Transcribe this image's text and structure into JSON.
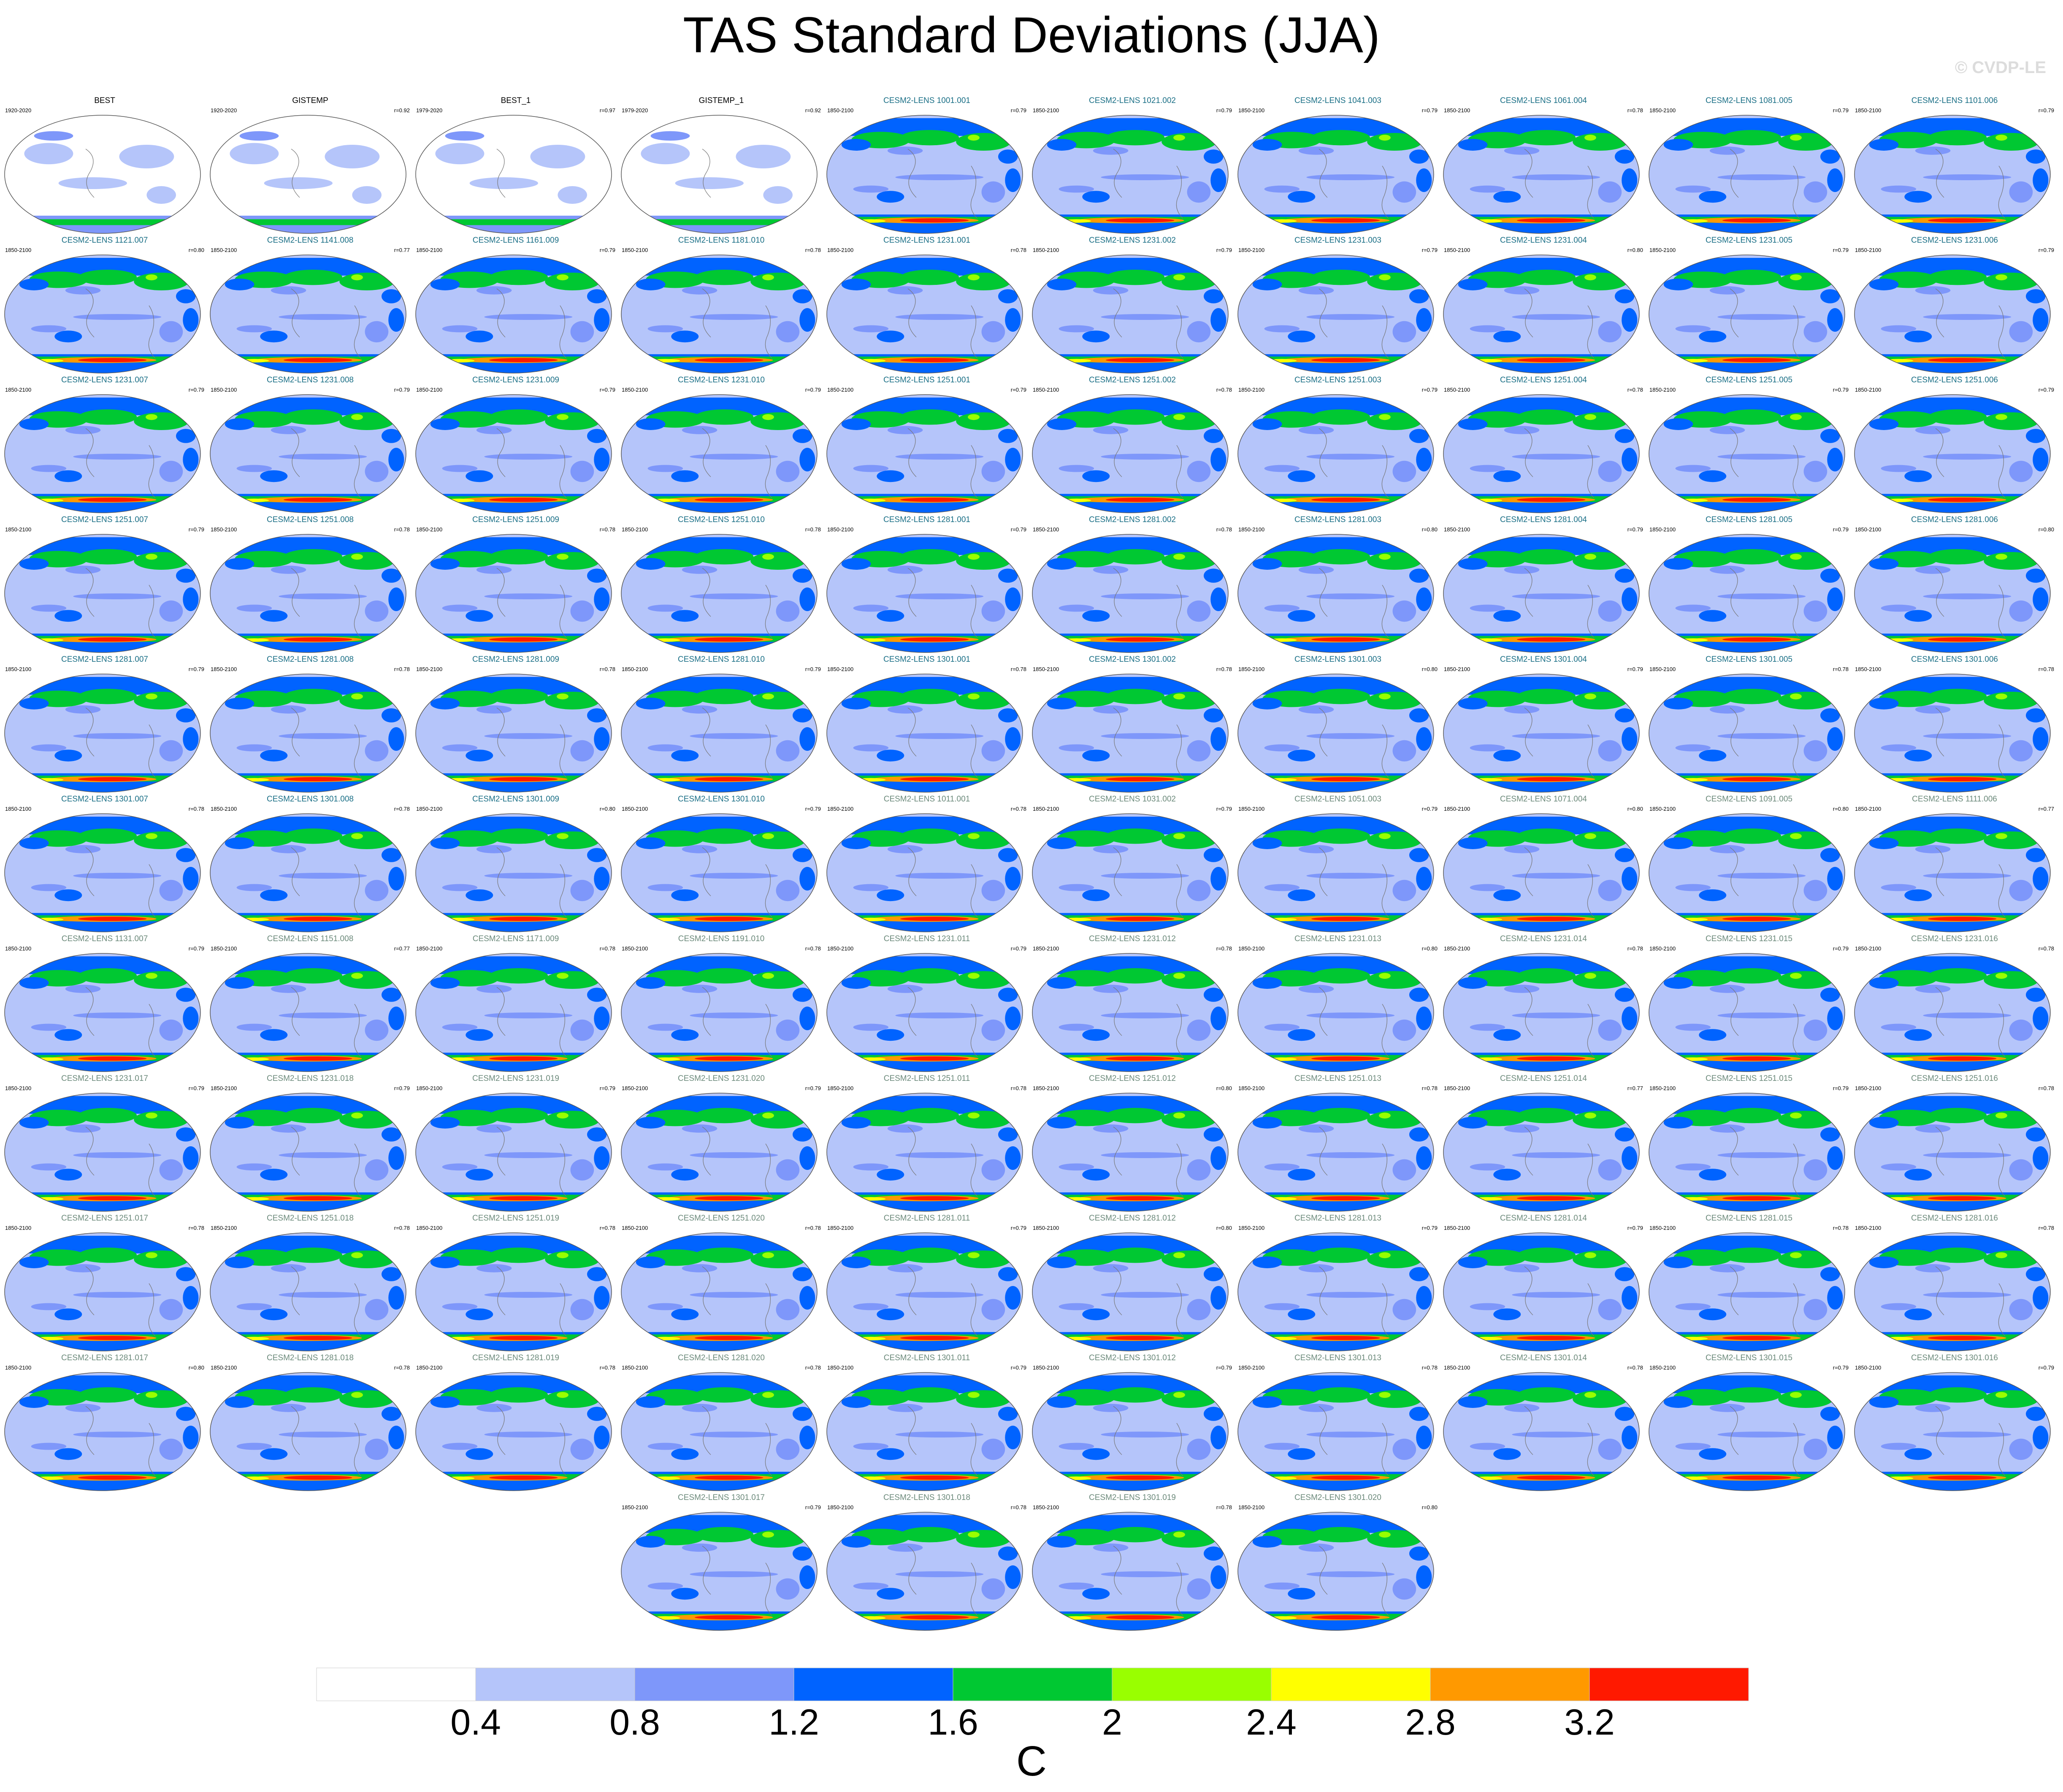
{
  "title": "TAS Standard Deviations (JJA)",
  "watermark": "© CVDP-LE",
  "colors": {
    "ref_title": "#000000",
    "member_title_dark": "#1a6f86",
    "member_title_light": "#6c8a7b",
    "ocean_base": "#b5c5fa"
  },
  "chart_data": {
    "type": "map-panel-grid",
    "variable": "TAS",
    "season": "JJA",
    "projection": "robinson",
    "colorbar": {
      "levels": [
        0.4,
        0.8,
        1.2,
        1.6,
        2,
        2.4,
        2.8,
        3.2
      ],
      "tick_labels": [
        "0.4",
        "0.8",
        "1.2",
        "1.6",
        "2",
        "2.4",
        "2.8",
        "3.2"
      ],
      "colors": [
        "#ffffff",
        "#b5c5fa",
        "#7e97fa",
        "#0063ff",
        "#00c832",
        "#99ff00",
        "#ffff00",
        "#ff9900",
        "#ff1900"
      ],
      "unit": "C"
    },
    "panels": [
      {
        "title": "BEST",
        "range": "1920-2020",
        "r": "",
        "type": "obs"
      },
      {
        "title": "GISTEMP",
        "range": "1920-2020",
        "r": "r=0.92",
        "type": "obs"
      },
      {
        "title": "BEST_1",
        "range": "1979-2020",
        "r": "r=0.97",
        "type": "obs"
      },
      {
        "title": "GISTEMP_1",
        "range": "1979-2020",
        "r": "r=0.92",
        "type": "obs"
      },
      {
        "title": "CESM2-LENS 1001.001",
        "range": "1850-2100",
        "r": "r=0.79",
        "type": "dark"
      },
      {
        "title": "CESM2-LENS 1021.002",
        "range": "1850-2100",
        "r": "r=0.79",
        "type": "dark"
      },
      {
        "title": "CESM2-LENS 1041.003",
        "range": "1850-2100",
        "r": "r=0.79",
        "type": "dark"
      },
      {
        "title": "CESM2-LENS 1061.004",
        "range": "1850-2100",
        "r": "r=0.78",
        "type": "dark"
      },
      {
        "title": "CESM2-LENS 1081.005",
        "range": "1850-2100",
        "r": "r=0.79",
        "type": "dark"
      },
      {
        "title": "CESM2-LENS 1101.006",
        "range": "1850-2100",
        "r": "r=0.79",
        "type": "dark"
      },
      {
        "title": "CESM2-LENS 1121.007",
        "range": "1850-2100",
        "r": "r=0.80",
        "type": "dark"
      },
      {
        "title": "CESM2-LENS 1141.008",
        "range": "1850-2100",
        "r": "r=0.77",
        "type": "dark"
      },
      {
        "title": "CESM2-LENS 1161.009",
        "range": "1850-2100",
        "r": "r=0.79",
        "type": "dark"
      },
      {
        "title": "CESM2-LENS 1181.010",
        "range": "1850-2100",
        "r": "r=0.78",
        "type": "dark"
      },
      {
        "title": "CESM2-LENS 1231.001",
        "range": "1850-2100",
        "r": "r=0.78",
        "type": "dark"
      },
      {
        "title": "CESM2-LENS 1231.002",
        "range": "1850-2100",
        "r": "r=0.79",
        "type": "dark"
      },
      {
        "title": "CESM2-LENS 1231.003",
        "range": "1850-2100",
        "r": "r=0.79",
        "type": "dark"
      },
      {
        "title": "CESM2-LENS 1231.004",
        "range": "1850-2100",
        "r": "r=0.80",
        "type": "dark"
      },
      {
        "title": "CESM2-LENS 1231.005",
        "range": "1850-2100",
        "r": "r=0.79",
        "type": "dark"
      },
      {
        "title": "CESM2-LENS 1231.006",
        "range": "1850-2100",
        "r": "r=0.79",
        "type": "dark"
      },
      {
        "title": "CESM2-LENS 1231.007",
        "range": "1850-2100",
        "r": "r=0.79",
        "type": "dark"
      },
      {
        "title": "CESM2-LENS 1231.008",
        "range": "1850-2100",
        "r": "r=0.79",
        "type": "dark"
      },
      {
        "title": "CESM2-LENS 1231.009",
        "range": "1850-2100",
        "r": "r=0.79",
        "type": "dark"
      },
      {
        "title": "CESM2-LENS 1231.010",
        "range": "1850-2100",
        "r": "r=0.79",
        "type": "dark"
      },
      {
        "title": "CESM2-LENS 1251.001",
        "range": "1850-2100",
        "r": "r=0.79",
        "type": "dark"
      },
      {
        "title": "CESM2-LENS 1251.002",
        "range": "1850-2100",
        "r": "r=0.78",
        "type": "dark"
      },
      {
        "title": "CESM2-LENS 1251.003",
        "range": "1850-2100",
        "r": "r=0.79",
        "type": "dark"
      },
      {
        "title": "CESM2-LENS 1251.004",
        "range": "1850-2100",
        "r": "r=0.78",
        "type": "dark"
      },
      {
        "title": "CESM2-LENS 1251.005",
        "range": "1850-2100",
        "r": "r=0.79",
        "type": "dark"
      },
      {
        "title": "CESM2-LENS 1251.006",
        "range": "1850-2100",
        "r": "r=0.79",
        "type": "dark"
      },
      {
        "title": "CESM2-LENS 1251.007",
        "range": "1850-2100",
        "r": "r=0.79",
        "type": "dark"
      },
      {
        "title": "CESM2-LENS 1251.008",
        "range": "1850-2100",
        "r": "r=0.78",
        "type": "dark"
      },
      {
        "title": "CESM2-LENS 1251.009",
        "range": "1850-2100",
        "r": "r=0.78",
        "type": "dark"
      },
      {
        "title": "CESM2-LENS 1251.010",
        "range": "1850-2100",
        "r": "r=0.78",
        "type": "dark"
      },
      {
        "title": "CESM2-LENS 1281.001",
        "range": "1850-2100",
        "r": "r=0.79",
        "type": "dark"
      },
      {
        "title": "CESM2-LENS 1281.002",
        "range": "1850-2100",
        "r": "r=0.78",
        "type": "dark"
      },
      {
        "title": "CESM2-LENS 1281.003",
        "range": "1850-2100",
        "r": "r=0.80",
        "type": "dark"
      },
      {
        "title": "CESM2-LENS 1281.004",
        "range": "1850-2100",
        "r": "r=0.79",
        "type": "dark"
      },
      {
        "title": "CESM2-LENS 1281.005",
        "range": "1850-2100",
        "r": "r=0.79",
        "type": "dark"
      },
      {
        "title": "CESM2-LENS 1281.006",
        "range": "1850-2100",
        "r": "r=0.80",
        "type": "dark"
      },
      {
        "title": "CESM2-LENS 1281.007",
        "range": "1850-2100",
        "r": "r=0.79",
        "type": "dark"
      },
      {
        "title": "CESM2-LENS 1281.008",
        "range": "1850-2100",
        "r": "r=0.78",
        "type": "dark"
      },
      {
        "title": "CESM2-LENS 1281.009",
        "range": "1850-2100",
        "r": "r=0.78",
        "type": "dark"
      },
      {
        "title": "CESM2-LENS 1281.010",
        "range": "1850-2100",
        "r": "r=0.79",
        "type": "dark"
      },
      {
        "title": "CESM2-LENS 1301.001",
        "range": "1850-2100",
        "r": "r=0.78",
        "type": "dark"
      },
      {
        "title": "CESM2-LENS 1301.002",
        "range": "1850-2100",
        "r": "r=0.78",
        "type": "dark"
      },
      {
        "title": "CESM2-LENS 1301.003",
        "range": "1850-2100",
        "r": "r=0.80",
        "type": "dark"
      },
      {
        "title": "CESM2-LENS 1301.004",
        "range": "1850-2100",
        "r": "r=0.79",
        "type": "dark"
      },
      {
        "title": "CESM2-LENS 1301.005",
        "range": "1850-2100",
        "r": "r=0.78",
        "type": "dark"
      },
      {
        "title": "CESM2-LENS 1301.006",
        "range": "1850-2100",
        "r": "r=0.78",
        "type": "dark"
      },
      {
        "title": "CESM2-LENS 1301.007",
        "range": "1850-2100",
        "r": "r=0.78",
        "type": "dark"
      },
      {
        "title": "CESM2-LENS 1301.008",
        "range": "1850-2100",
        "r": "r=0.78",
        "type": "dark"
      },
      {
        "title": "CESM2-LENS 1301.009",
        "range": "1850-2100",
        "r": "r=0.80",
        "type": "dark"
      },
      {
        "title": "CESM2-LENS 1301.010",
        "range": "1850-2100",
        "r": "r=0.79",
        "type": "dark"
      },
      {
        "title": "CESM2-LENS 1011.001",
        "range": "1850-2100",
        "r": "r=0.78",
        "type": "light"
      },
      {
        "title": "CESM2-LENS 1031.002",
        "range": "1850-2100",
        "r": "r=0.79",
        "type": "light"
      },
      {
        "title": "CESM2-LENS 1051.003",
        "range": "1850-2100",
        "r": "r=0.79",
        "type": "light"
      },
      {
        "title": "CESM2-LENS 1071.004",
        "range": "1850-2100",
        "r": "r=0.80",
        "type": "light"
      },
      {
        "title": "CESM2-LENS 1091.005",
        "range": "1850-2100",
        "r": "r=0.80",
        "type": "light"
      },
      {
        "title": "CESM2-LENS 1111.006",
        "range": "1850-2100",
        "r": "r=0.77",
        "type": "light"
      },
      {
        "title": "CESM2-LENS 1131.007",
        "range": "1850-2100",
        "r": "r=0.79",
        "type": "light"
      },
      {
        "title": "CESM2-LENS 1151.008",
        "range": "1850-2100",
        "r": "r=0.77",
        "type": "light"
      },
      {
        "title": "CESM2-LENS 1171.009",
        "range": "1850-2100",
        "r": "r=0.78",
        "type": "light"
      },
      {
        "title": "CESM2-LENS 1191.010",
        "range": "1850-2100",
        "r": "r=0.78",
        "type": "light"
      },
      {
        "title": "CESM2-LENS 1231.011",
        "range": "1850-2100",
        "r": "r=0.79",
        "type": "light"
      },
      {
        "title": "CESM2-LENS 1231.012",
        "range": "1850-2100",
        "r": "r=0.78",
        "type": "light"
      },
      {
        "title": "CESM2-LENS 1231.013",
        "range": "1850-2100",
        "r": "r=0.80",
        "type": "light"
      },
      {
        "title": "CESM2-LENS 1231.014",
        "range": "1850-2100",
        "r": "r=0.78",
        "type": "light"
      },
      {
        "title": "CESM2-LENS 1231.015",
        "range": "1850-2100",
        "r": "r=0.79",
        "type": "light"
      },
      {
        "title": "CESM2-LENS 1231.016",
        "range": "1850-2100",
        "r": "r=0.78",
        "type": "light"
      },
      {
        "title": "CESM2-LENS 1231.017",
        "range": "1850-2100",
        "r": "r=0.79",
        "type": "light"
      },
      {
        "title": "CESM2-LENS 1231.018",
        "range": "1850-2100",
        "r": "r=0.79",
        "type": "light"
      },
      {
        "title": "CESM2-LENS 1231.019",
        "range": "1850-2100",
        "r": "r=0.79",
        "type": "light"
      },
      {
        "title": "CESM2-LENS 1231.020",
        "range": "1850-2100",
        "r": "r=0.79",
        "type": "light"
      },
      {
        "title": "CESM2-LENS 1251.011",
        "range": "1850-2100",
        "r": "r=0.78",
        "type": "light"
      },
      {
        "title": "CESM2-LENS 1251.012",
        "range": "1850-2100",
        "r": "r=0.80",
        "type": "light"
      },
      {
        "title": "CESM2-LENS 1251.013",
        "range": "1850-2100",
        "r": "r=0.78",
        "type": "light"
      },
      {
        "title": "CESM2-LENS 1251.014",
        "range": "1850-2100",
        "r": "r=0.77",
        "type": "light"
      },
      {
        "title": "CESM2-LENS 1251.015",
        "range": "1850-2100",
        "r": "r=0.79",
        "type": "light"
      },
      {
        "title": "CESM2-LENS 1251.016",
        "range": "1850-2100",
        "r": "r=0.78",
        "type": "light"
      },
      {
        "title": "CESM2-LENS 1251.017",
        "range": "1850-2100",
        "r": "r=0.78",
        "type": "light"
      },
      {
        "title": "CESM2-LENS 1251.018",
        "range": "1850-2100",
        "r": "r=0.78",
        "type": "light"
      },
      {
        "title": "CESM2-LENS 1251.019",
        "range": "1850-2100",
        "r": "r=0.78",
        "type": "light"
      },
      {
        "title": "CESM2-LENS 1251.020",
        "range": "1850-2100",
        "r": "r=0.78",
        "type": "light"
      },
      {
        "title": "CESM2-LENS 1281.011",
        "range": "1850-2100",
        "r": "r=0.79",
        "type": "light"
      },
      {
        "title": "CESM2-LENS 1281.012",
        "range": "1850-2100",
        "r": "r=0.80",
        "type": "light"
      },
      {
        "title": "CESM2-LENS 1281.013",
        "range": "1850-2100",
        "r": "r=0.79",
        "type": "light"
      },
      {
        "title": "CESM2-LENS 1281.014",
        "range": "1850-2100",
        "r": "r=0.79",
        "type": "light"
      },
      {
        "title": "CESM2-LENS 1281.015",
        "range": "1850-2100",
        "r": "r=0.78",
        "type": "light"
      },
      {
        "title": "CESM2-LENS 1281.016",
        "range": "1850-2100",
        "r": "r=0.78",
        "type": "light"
      },
      {
        "title": "CESM2-LENS 1281.017",
        "range": "1850-2100",
        "r": "r=0.80",
        "type": "light"
      },
      {
        "title": "CESM2-LENS 1281.018",
        "range": "1850-2100",
        "r": "r=0.78",
        "type": "light"
      },
      {
        "title": "CESM2-LENS 1281.019",
        "range": "1850-2100",
        "r": "r=0.78",
        "type": "light"
      },
      {
        "title": "CESM2-LENS 1281.020",
        "range": "1850-2100",
        "r": "r=0.78",
        "type": "light"
      },
      {
        "title": "CESM2-LENS 1301.011",
        "range": "1850-2100",
        "r": "r=0.79",
        "type": "light"
      },
      {
        "title": "CESM2-LENS 1301.012",
        "range": "1850-2100",
        "r": "r=0.79",
        "type": "light"
      },
      {
        "title": "CESM2-LENS 1301.013",
        "range": "1850-2100",
        "r": "r=0.78",
        "type": "light"
      },
      {
        "title": "CESM2-LENS 1301.014",
        "range": "1850-2100",
        "r": "r=0.78",
        "type": "light"
      },
      {
        "title": "CESM2-LENS 1301.015",
        "range": "1850-2100",
        "r": "r=0.79",
        "type": "light"
      },
      {
        "title": "CESM2-LENS 1301.016",
        "range": "1850-2100",
        "r": "r=0.79",
        "type": "light"
      },
      {
        "title": "CESM2-LENS 1301.017",
        "range": "1850-2100",
        "r": "r=0.79",
        "type": "light"
      },
      {
        "title": "CESM2-LENS 1301.018",
        "range": "1850-2100",
        "r": "r=0.78",
        "type": "light"
      },
      {
        "title": "CESM2-LENS 1301.019",
        "range": "1850-2100",
        "r": "r=0.78",
        "type": "light"
      },
      {
        "title": "CESM2-LENS 1301.020",
        "range": "1850-2100",
        "r": "r=0.80",
        "type": "light"
      }
    ]
  }
}
